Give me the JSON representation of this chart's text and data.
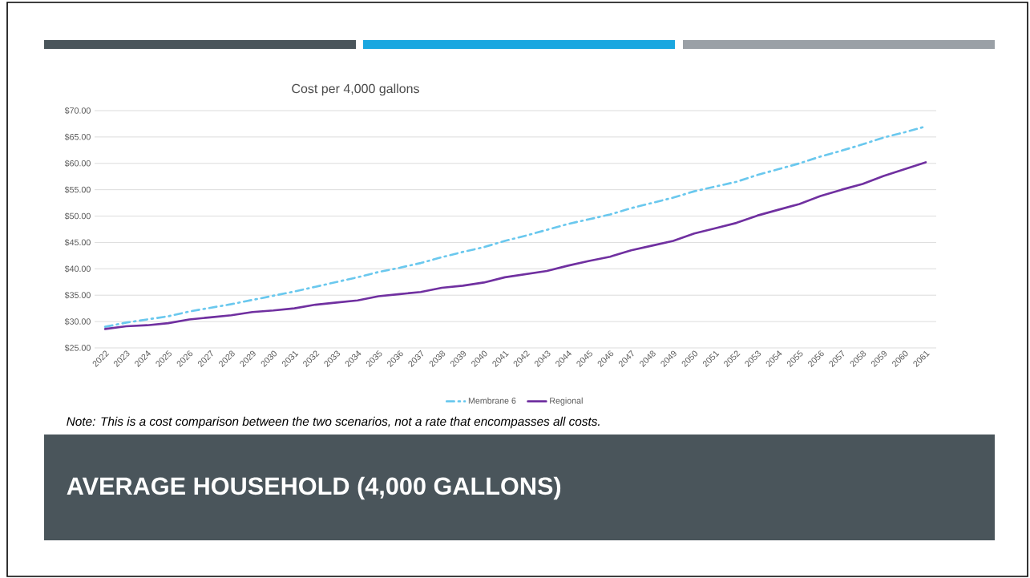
{
  "chart_data": {
    "type": "line",
    "title": "Cost per 4,000 gallons",
    "categories": [
      "2022",
      "2023",
      "2024",
      "2025",
      "2026",
      "2027",
      "2028",
      "2029",
      "2030",
      "2031",
      "2032",
      "2033",
      "2034",
      "2035",
      "2036",
      "2037",
      "2038",
      "2039",
      "2040",
      "2041",
      "2042",
      "2043",
      "2044",
      "2045",
      "2046",
      "2047",
      "2048",
      "2049",
      "2050",
      "2051",
      "2052",
      "2053",
      "2054",
      "2055",
      "2056",
      "2057",
      "2058",
      "2059",
      "2060",
      "2061"
    ],
    "series": [
      {
        "name": "Membrane 6",
        "color": "#6ac8ee",
        "line_style": "dashed",
        "values": [
          29.0,
          29.8,
          30.4,
          31.0,
          31.9,
          32.6,
          33.3,
          34.1,
          34.9,
          35.7,
          36.6,
          37.5,
          38.4,
          39.4,
          40.2,
          41.1,
          42.2,
          43.2,
          44.1,
          45.3,
          46.3,
          47.4,
          48.5,
          49.4,
          50.3,
          51.5,
          52.5,
          53.5,
          54.7,
          55.6,
          56.5,
          57.8,
          58.9,
          60.0,
          61.3,
          62.4,
          63.6,
          64.9,
          65.9,
          67.0
        ]
      },
      {
        "name": "Regional",
        "color": "#7030a0",
        "line_style": "solid",
        "values": [
          28.6,
          29.1,
          29.3,
          29.7,
          30.4,
          30.8,
          31.2,
          31.8,
          32.1,
          32.5,
          33.2,
          33.6,
          34.0,
          34.8,
          35.2,
          35.6,
          36.4,
          36.8,
          37.4,
          38.4,
          39.0,
          39.6,
          40.6,
          41.5,
          42.3,
          43.5,
          44.4,
          45.3,
          46.7,
          47.7,
          48.7,
          50.1,
          51.2,
          52.3,
          53.8,
          55.0,
          56.1,
          57.6,
          58.9,
          60.2
        ]
      }
    ],
    "ylim": [
      25,
      70
    ],
    "yticks": [
      {
        "value": 25,
        "label": "$25.00"
      },
      {
        "value": 30,
        "label": "$30.00"
      },
      {
        "value": 35,
        "label": "$35.00"
      },
      {
        "value": 40,
        "label": "$40.00"
      },
      {
        "value": 45,
        "label": "$45.00"
      },
      {
        "value": 50,
        "label": "$50.00"
      },
      {
        "value": 55,
        "label": "$55.00"
      },
      {
        "value": 60,
        "label": "$60.00"
      },
      {
        "value": 65,
        "label": "$65.00"
      },
      {
        "value": 70,
        "label": "$70.00"
      }
    ],
    "grid": "y",
    "legend": "bottom",
    "marker": "none",
    "annotations": [
      "Note: This is a cost comparison between the two scenarios, not a rate that encompasses all costs.",
      "AVERAGE HOUSEHOLD (4,000 GALLONS)"
    ]
  }
}
